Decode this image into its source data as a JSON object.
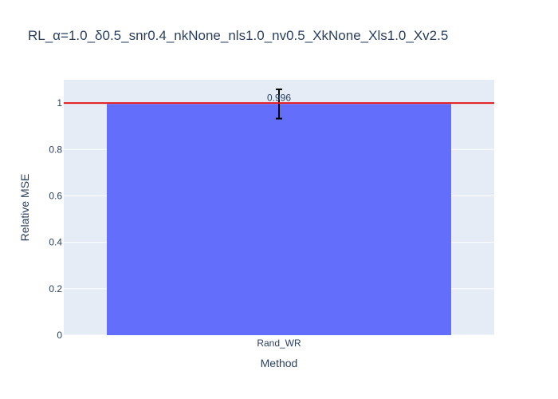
{
  "chart_data": {
    "type": "bar",
    "title": "RL_α=1.0_δ0.5_snr0.4_nkNone_nls1.0_nv0.5_XkNone_Xls1.0_Xv2.5",
    "xlabel": "Method",
    "ylabel": "Relative MSE",
    "categories": [
      "Rand_WR"
    ],
    "values": [
      0.996
    ],
    "error": [
      0.063
    ],
    "data_labels": [
      "0.996"
    ],
    "ylim": [
      0,
      1.1
    ],
    "yticks": [
      0,
      0.2,
      0.4,
      0.6,
      0.8,
      1
    ],
    "ytick_labels": [
      "0",
      "0.2",
      "0.4",
      "0.6",
      "0.8",
      "1"
    ],
    "reference_line": {
      "y": 1,
      "color": "#e41a1c"
    },
    "bar_color": "#636efa",
    "plot_background": "#e5ecf6",
    "grid": true
  }
}
